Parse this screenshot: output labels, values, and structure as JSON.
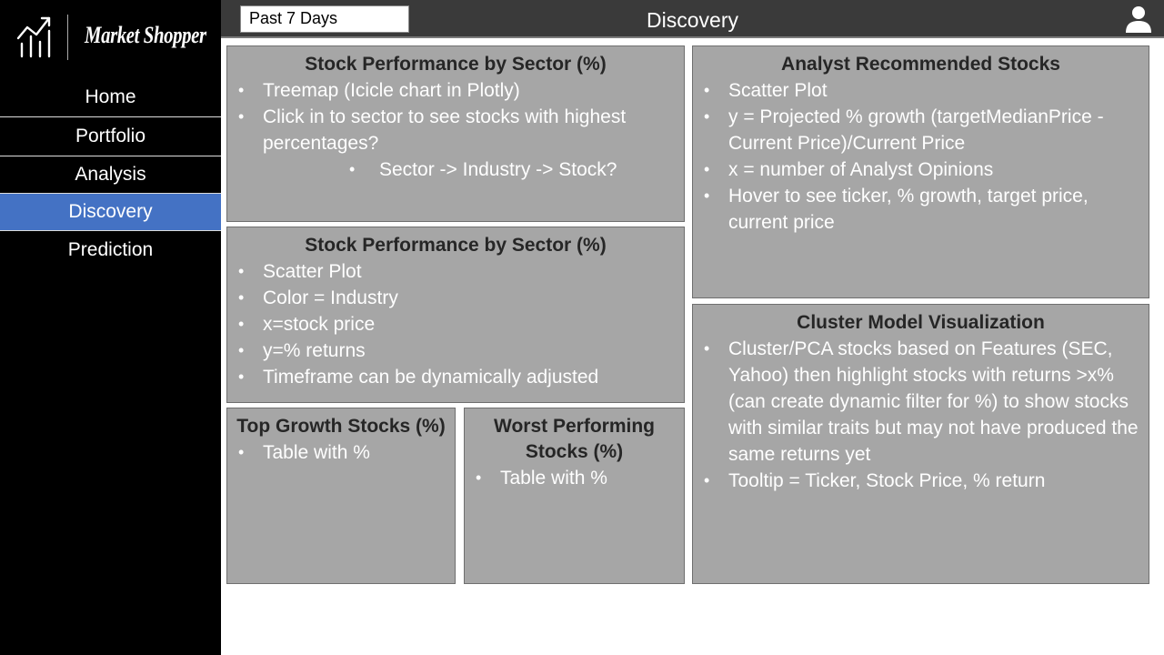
{
  "brand": {
    "name": "Market Shopper",
    "logo_icon": "bar-chart-trend-icon"
  },
  "nav": {
    "items": [
      {
        "label": "Home",
        "active": false
      },
      {
        "label": "Portfolio",
        "active": false
      },
      {
        "label": "Analysis",
        "active": false
      },
      {
        "label": "Discovery",
        "active": true
      },
      {
        "label": "Prediction",
        "active": false
      }
    ],
    "active_color": "#4472c4"
  },
  "header": {
    "date_filter": "Past 7 Days",
    "title": "Discovery",
    "user_icon": "user-icon"
  },
  "panels": {
    "sector_treemap": {
      "title": "Stock Performance by Sector (%)",
      "bullets": [
        "Treemap (Icicle chart in Plotly)",
        "Click in to sector to see stocks with highest percentages?"
      ],
      "sub_bullet": "Sector -> Industry -> Stock?"
    },
    "sector_scatter": {
      "title": "Stock Performance by Sector (%)",
      "bullets": [
        "Scatter Plot",
        "Color = Industry",
        "x=stock price",
        "y=% returns",
        "Timeframe can be dynamically adjusted"
      ]
    },
    "top_growth": {
      "title": "Top Growth Stocks (%)",
      "bullets": [
        "Table with %"
      ]
    },
    "worst_performing": {
      "title": "Worst Performing Stocks (%)",
      "bullets": [
        "Table with %"
      ]
    },
    "analyst_recommended": {
      "title": "Analyst Recommended Stocks",
      "bullets": [
        "Scatter Plot",
        "y = Projected % growth (targetMedianPrice - Current Price)/Current Price",
        "x = number of Analyst Opinions",
        "Hover to see ticker, % growth, target price, current price"
      ]
    },
    "cluster_model": {
      "title": "Cluster Model Visualization",
      "bullets": [
        "Cluster/PCA stocks based on Features (SEC, Yahoo) then highlight stocks with returns >x% (can create dynamic filter for %) to show stocks with similar traits but may not have produced the same returns yet",
        "Tooltip = Ticker, Stock Price, % return"
      ]
    }
  }
}
